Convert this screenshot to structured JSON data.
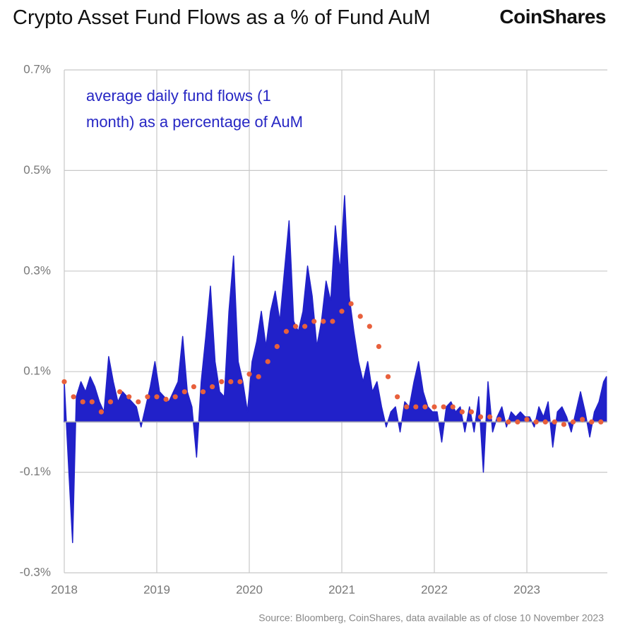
{
  "chart_data": {
    "type": "area",
    "title": "Crypto Asset Fund Flows as a % of Fund AuM",
    "logo": "CoinShares",
    "annotation": [
      "average daily fund flows (1",
      "month) as a percentage of AuM"
    ],
    "source": "Source: Bloomberg, CoinShares, data available as of close 10 November 2023",
    "xlim": [
      2018,
      2023.87
    ],
    "xticks": [
      2018,
      2019,
      2020,
      2021,
      2022,
      2023
    ],
    "ylim": [
      -0.3,
      0.7
    ],
    "yticks": [
      {
        "value": 0.7,
        "label": "0.7%"
      },
      {
        "value": 0.5,
        "label": "0.5%"
      },
      {
        "value": 0.3,
        "label": "0.3%"
      },
      {
        "value": 0.1,
        "label": "0.1%"
      },
      {
        "value": -0.1,
        "label": "-0.1%"
      },
      {
        "value": -0.3,
        "label": "-0.3%"
      }
    ],
    "grid": true,
    "series": [
      {
        "type": "area",
        "color": "#2121c9",
        "x": [
          2018.0,
          2018.05,
          2018.09,
          2018.13,
          2018.18,
          2018.23,
          2018.28,
          2018.33,
          2018.38,
          2018.43,
          2018.48,
          2018.53,
          2018.58,
          2018.63,
          2018.68,
          2018.73,
          2018.78,
          2018.83,
          2018.88,
          2018.93,
          2018.98,
          2019.03,
          2019.08,
          2019.13,
          2019.18,
          2019.23,
          2019.28,
          2019.33,
          2019.38,
          2019.43,
          2019.48,
          2019.53,
          2019.58,
          2019.63,
          2019.68,
          2019.73,
          2019.78,
          2019.83,
          2019.88,
          2019.93,
          2019.98,
          2020.03,
          2020.08,
          2020.13,
          2020.18,
          2020.23,
          2020.28,
          2020.33,
          2020.38,
          2020.43,
          2020.48,
          2020.53,
          2020.58,
          2020.63,
          2020.68,
          2020.73,
          2020.78,
          2020.83,
          2020.88,
          2020.93,
          2020.98,
          2021.03,
          2021.08,
          2021.13,
          2021.18,
          2021.23,
          2021.28,
          2021.33,
          2021.38,
          2021.43,
          2021.48,
          2021.53,
          2021.58,
          2021.63,
          2021.68,
          2021.73,
          2021.78,
          2021.83,
          2021.88,
          2021.93,
          2021.98,
          2022.03,
          2022.08,
          2022.13,
          2022.18,
          2022.23,
          2022.28,
          2022.33,
          2022.38,
          2022.43,
          2022.48,
          2022.53,
          2022.58,
          2022.63,
          2022.68,
          2022.73,
          2022.78,
          2022.83,
          2022.88,
          2022.93,
          2022.98,
          2023.03,
          2023.08,
          2023.13,
          2023.18,
          2023.23,
          2023.28,
          2023.33,
          2023.38,
          2023.43,
          2023.48,
          2023.53,
          2023.58,
          2023.63,
          2023.68,
          2023.73,
          2023.78,
          2023.83,
          2023.86
        ],
        "values": [
          0.08,
          -0.1,
          -0.24,
          0.05,
          0.08,
          0.06,
          0.09,
          0.07,
          0.04,
          0.02,
          0.13,
          0.08,
          0.04,
          0.06,
          0.05,
          0.04,
          0.03,
          -0.01,
          0.03,
          0.07,
          0.12,
          0.06,
          0.05,
          0.04,
          0.06,
          0.08,
          0.17,
          0.06,
          0.03,
          -0.07,
          0.08,
          0.17,
          0.27,
          0.12,
          0.06,
          0.05,
          0.22,
          0.33,
          0.12,
          0.08,
          0.02,
          0.12,
          0.16,
          0.22,
          0.15,
          0.22,
          0.26,
          0.2,
          0.3,
          0.4,
          0.2,
          0.18,
          0.22,
          0.31,
          0.25,
          0.15,
          0.2,
          0.28,
          0.24,
          0.39,
          0.3,
          0.45,
          0.25,
          0.18,
          0.12,
          0.08,
          0.12,
          0.06,
          0.08,
          0.03,
          -0.01,
          0.02,
          0.03,
          -0.02,
          0.04,
          0.03,
          0.08,
          0.12,
          0.06,
          0.03,
          0.02,
          0.02,
          -0.04,
          0.03,
          0.04,
          0.02,
          0.03,
          -0.02,
          0.03,
          -0.02,
          0.05,
          -0.1,
          0.08,
          -0.02,
          0.01,
          0.03,
          -0.01,
          0.02,
          0.01,
          0.02,
          0.01,
          0.01,
          -0.01,
          0.03,
          0.01,
          0.04,
          -0.05,
          0.02,
          0.03,
          0.01,
          -0.02,
          0.02,
          0.06,
          0.02,
          -0.03,
          0.02,
          0.04,
          0.08,
          0.09
        ]
      },
      {
        "type": "scatter",
        "color": "#e8603c",
        "x": [
          2018.0,
          2018.1,
          2018.2,
          2018.3,
          2018.4,
          2018.5,
          2018.6,
          2018.7,
          2018.8,
          2018.9,
          2019.0,
          2019.1,
          2019.2,
          2019.3,
          2019.4,
          2019.5,
          2019.6,
          2019.7,
          2019.8,
          2019.9,
          2020.0,
          2020.1,
          2020.2,
          2020.3,
          2020.4,
          2020.5,
          2020.6,
          2020.7,
          2020.8,
          2020.9,
          2021.0,
          2021.1,
          2021.2,
          2021.3,
          2021.4,
          2021.5,
          2021.6,
          2021.7,
          2021.8,
          2021.9,
          2022.0,
          2022.1,
          2022.2,
          2022.3,
          2022.4,
          2022.5,
          2022.6,
          2022.7,
          2022.8,
          2022.9,
          2023.0,
          2023.1,
          2023.2,
          2023.3,
          2023.4,
          2023.5,
          2023.6,
          2023.7,
          2023.8
        ],
        "values": [
          0.08,
          0.05,
          0.04,
          0.04,
          0.02,
          0.04,
          0.06,
          0.05,
          0.04,
          0.05,
          0.05,
          0.045,
          0.05,
          0.06,
          0.07,
          0.06,
          0.07,
          0.08,
          0.08,
          0.08,
          0.095,
          0.09,
          0.12,
          0.15,
          0.18,
          0.19,
          0.19,
          0.2,
          0.2,
          0.2,
          0.22,
          0.235,
          0.21,
          0.19,
          0.15,
          0.09,
          0.05,
          0.03,
          0.03,
          0.03,
          0.03,
          0.03,
          0.03,
          0.02,
          0.02,
          0.01,
          0.01,
          0.005,
          0,
          0,
          0.005,
          0,
          0,
          0,
          -0.005,
          0,
          0.005,
          0,
          0
        ]
      }
    ]
  }
}
